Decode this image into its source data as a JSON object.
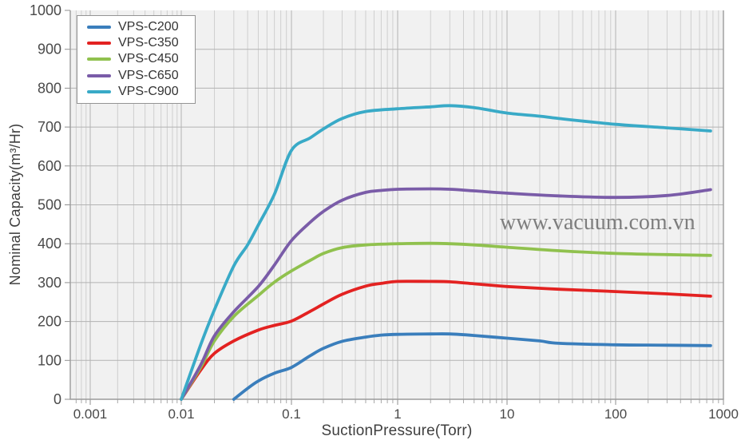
{
  "watermark": {
    "text": "www.vacuum.com.vn"
  },
  "chart_data": {
    "type": "line",
    "title": "",
    "xlabel": "SuctionPressure(Torr)",
    "ylabel": "Nominal Capacity(m³/Hr)",
    "x_scale": "log",
    "xlim": [
      0.0006,
      1000
    ],
    "ylim": [
      0,
      1000
    ],
    "x_tick_values": [
      0.001,
      0.01,
      0.1,
      1,
      10,
      100,
      1000
    ],
    "x_tick_labels": [
      "0.001",
      "0.01",
      "0.1",
      "1",
      "10",
      "100",
      "1000"
    ],
    "y_tick_values": [
      0,
      100,
      200,
      300,
      400,
      500,
      600,
      700,
      800,
      900,
      1000
    ],
    "y_tick_labels": [
      "0",
      "100",
      "200",
      "300",
      "400",
      "500",
      "600",
      "700",
      "800",
      "900",
      "1000"
    ],
    "grid": true,
    "legend_position": "top-left",
    "plot_background": "#f1f1f1",
    "grid_major_color": "#b3b3b3",
    "grid_minor_color": "#cfcfcf",
    "axis_color": "#9b9b9b",
    "tick_label_color": "#4a4a4a",
    "series": [
      {
        "name": "VPS-C200",
        "color": "#3a7ebc",
        "points": [
          [
            0.03,
            0
          ],
          [
            0.04,
            28
          ],
          [
            0.05,
            47
          ],
          [
            0.07,
            67
          ],
          [
            0.1,
            82
          ],
          [
            0.15,
            112
          ],
          [
            0.2,
            131
          ],
          [
            0.3,
            149
          ],
          [
            0.5,
            160
          ],
          [
            0.7,
            165
          ],
          [
            1,
            167
          ],
          [
            2,
            168
          ],
          [
            3,
            168
          ],
          [
            5,
            164
          ],
          [
            10,
            157
          ],
          [
            20,
            150
          ],
          [
            30,
            144
          ],
          [
            100,
            140
          ],
          [
            300,
            139
          ],
          [
            760,
            138
          ]
        ]
      },
      {
        "name": "VPS-C350",
        "color": "#e32221",
        "points": [
          [
            0.01,
            0
          ],
          [
            0.015,
            75
          ],
          [
            0.02,
            118
          ],
          [
            0.03,
            150
          ],
          [
            0.05,
            178
          ],
          [
            0.07,
            190
          ],
          [
            0.1,
            201
          ],
          [
            0.15,
            226
          ],
          [
            0.2,
            245
          ],
          [
            0.3,
            270
          ],
          [
            0.5,
            291
          ],
          [
            0.7,
            298
          ],
          [
            1,
            303
          ],
          [
            2,
            303
          ],
          [
            3,
            302
          ],
          [
            5,
            297
          ],
          [
            10,
            290
          ],
          [
            30,
            283
          ],
          [
            100,
            277
          ],
          [
            300,
            271
          ],
          [
            760,
            265
          ]
        ]
      },
      {
        "name": "VPS-C450",
        "color": "#90c14e",
        "points": [
          [
            0.01,
            0
          ],
          [
            0.015,
            82
          ],
          [
            0.02,
            150
          ],
          [
            0.03,
            213
          ],
          [
            0.05,
            267
          ],
          [
            0.07,
            301
          ],
          [
            0.1,
            330
          ],
          [
            0.15,
            357
          ],
          [
            0.2,
            375
          ],
          [
            0.3,
            390
          ],
          [
            0.5,
            397
          ],
          [
            1,
            400
          ],
          [
            2,
            401
          ],
          [
            3,
            400
          ],
          [
            5,
            397
          ],
          [
            10,
            391
          ],
          [
            30,
            382
          ],
          [
            100,
            375
          ],
          [
            300,
            372
          ],
          [
            760,
            370
          ]
        ]
      },
      {
        "name": "VPS-C650",
        "color": "#7a5ca8",
        "points": [
          [
            0.01,
            0
          ],
          [
            0.015,
            88
          ],
          [
            0.02,
            163
          ],
          [
            0.03,
            225
          ],
          [
            0.05,
            290
          ],
          [
            0.07,
            345
          ],
          [
            0.1,
            408
          ],
          [
            0.15,
            455
          ],
          [
            0.2,
            483
          ],
          [
            0.3,
            512
          ],
          [
            0.5,
            532
          ],
          [
            0.7,
            537
          ],
          [
            1,
            540
          ],
          [
            2,
            541
          ],
          [
            3,
            540
          ],
          [
            5,
            536
          ],
          [
            10,
            530
          ],
          [
            30,
            523
          ],
          [
            100,
            519
          ],
          [
            300,
            524
          ],
          [
            760,
            539
          ]
        ]
      },
      {
        "name": "VPS-C900",
        "color": "#39aac7",
        "points": [
          [
            0.01,
            0
          ],
          [
            0.015,
            140
          ],
          [
            0.02,
            230
          ],
          [
            0.03,
            343
          ],
          [
            0.04,
            397
          ],
          [
            0.05,
            448
          ],
          [
            0.07,
            527
          ],
          [
            0.1,
            640
          ],
          [
            0.15,
            672
          ],
          [
            0.2,
            695
          ],
          [
            0.3,
            722
          ],
          [
            0.5,
            740
          ],
          [
            1,
            747
          ],
          [
            2,
            752
          ],
          [
            3,
            755
          ],
          [
            5,
            750
          ],
          [
            10,
            736
          ],
          [
            20,
            728
          ],
          [
            30,
            722
          ],
          [
            100,
            707
          ],
          [
            300,
            698
          ],
          [
            760,
            690
          ]
        ]
      }
    ]
  }
}
